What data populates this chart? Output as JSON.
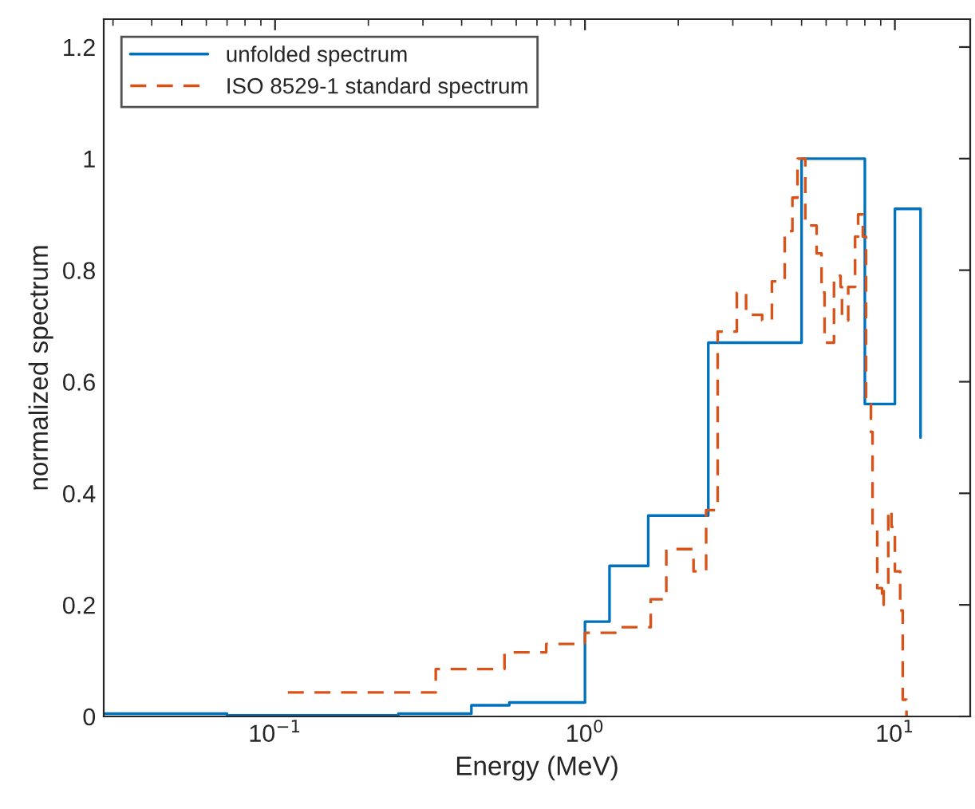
{
  "chart_data": {
    "type": "step",
    "xlabel": "Energy (MeV)",
    "ylabel": "normalized spectrum",
    "log": "x",
    "xlim": [
      0.028,
      17.5
    ],
    "xticks": [
      {
        "value": 0.1,
        "label": "10$^{−1}$"
      },
      {
        "value": 1,
        "label": "10$^{0}$"
      },
      {
        "value": 10,
        "label": "10$^{1}$"
      }
    ],
    "ylim": [
      0,
      1.25
    ],
    "yticks": [
      0,
      0.2,
      0.4,
      0.6,
      0.8,
      1,
      1.2
    ],
    "grid": false,
    "legend": "top left",
    "series": [
      {
        "name": "unfolded spectrum",
        "color": "#0072bd",
        "line_style": "solid",
        "x": [
          0.028,
          0.07,
          0.25,
          0.43,
          0.57,
          1.0,
          1.2,
          1.6,
          2.5,
          5.0,
          8.0,
          10.0,
          12.1
        ],
        "values": [
          0.005,
          0.002,
          0.005,
          0.02,
          0.025,
          0.17,
          0.27,
          0.36,
          0.67,
          1.0,
          0.56,
          0.91,
          0.5
        ]
      },
      {
        "name": "ISO 8529-1 standard spectrum",
        "color": "#d95319",
        "line_style": "dashed",
        "x": [
          0.11,
          0.33,
          0.55,
          0.75,
          1.0,
          1.27,
          1.63,
          1.83,
          2.24,
          2.46,
          2.68,
          3.09,
          3.31,
          3.73,
          4.01,
          4.41,
          4.67,
          4.85,
          5.14,
          5.59,
          5.8,
          5.93,
          6.36,
          6.68,
          6.75,
          7.07,
          7.44,
          7.61,
          7.88,
          8.07,
          8.37,
          8.47,
          8.77,
          9.09,
          9.2,
          9.52,
          9.75,
          10.0,
          10.4,
          10.6,
          10.9
        ],
        "values": [
          0.043,
          0.085,
          0.115,
          0.13,
          0.15,
          0.16,
          0.21,
          0.3,
          0.26,
          0.37,
          0.69,
          0.76,
          0.72,
          0.71,
          0.78,
          0.87,
          0.93,
          1.0,
          0.88,
          0.83,
          0.76,
          0.67,
          0.79,
          0.77,
          0.71,
          0.77,
          0.86,
          0.9,
          0.86,
          0.56,
          0.51,
          0.34,
          0.23,
          0.2,
          0.23,
          0.37,
          0.34,
          0.26,
          0.19,
          0.03,
          0.0
        ]
      }
    ]
  }
}
